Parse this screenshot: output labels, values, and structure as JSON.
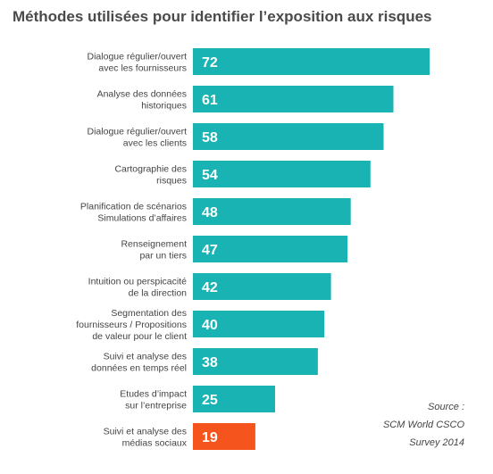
{
  "chart_data": {
    "type": "bar",
    "orientation": "horizontal",
    "title": "Méthodes utilisées pour identifier l’exposition aux risques",
    "categories": [
      [
        "Dialogue régulier/ouvert",
        "avec les fournisseurs"
      ],
      [
        "Analyse des données",
        "historiques"
      ],
      [
        "Dialogue régulier/ouvert",
        "avec les clients"
      ],
      [
        "Cartographie des",
        "risques"
      ],
      [
        "Planification de scénarios",
        "Simulations d’affaires"
      ],
      [
        "Renseignement",
        "par un tiers"
      ],
      [
        "Intuition ou perspicacité",
        "de la direction"
      ],
      [
        "Segmentation des",
        "fournisseurs / Propositions",
        "de valeur pour le client"
      ],
      [
        "Suivi et analyse des",
        "données en temps réel"
      ],
      [
        "Etudes d’impact",
        "sur l’entreprise"
      ],
      [
        "Suivi et analyse des",
        "médias sociaux"
      ]
    ],
    "values": [
      72,
      61,
      58,
      54,
      48,
      47,
      42,
      40,
      38,
      25,
      19
    ],
    "xlim": [
      0,
      75
    ],
    "grid": false,
    "legend": "none",
    "colors": {
      "default": "#1ab3b3",
      "highlight": "#f5541c",
      "highlight_index": 10
    }
  },
  "source": {
    "line1": "Source :",
    "line2": "SCM World CSCO",
    "line3": "Survey 2014"
  }
}
